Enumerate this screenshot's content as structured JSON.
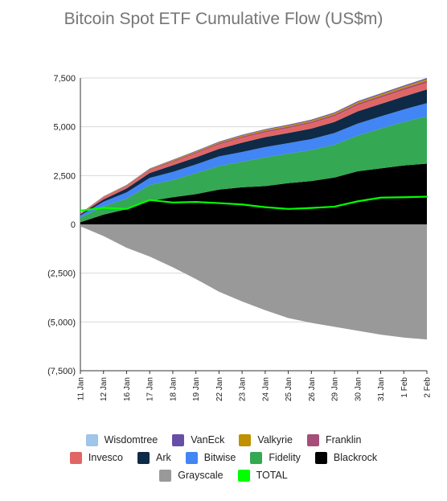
{
  "chart_data": {
    "type": "area",
    "title": "Bitcoin Spot ETF Cumulative Flow (US$m)",
    "xlabel": "",
    "ylabel": "",
    "ylim": [
      -7500,
      7500
    ],
    "y_ticks": [
      "7,500",
      "5,000",
      "2,500",
      "0",
      "(2,500)",
      "(5,000)",
      "(7,500)"
    ],
    "y_tick_values": [
      7500,
      5000,
      2500,
      0,
      -2500,
      -5000,
      -7500
    ],
    "grid": true,
    "legend_position": "bottom",
    "categories": [
      "11 Jan",
      "12 Jan",
      "16 Jan",
      "17 Jan",
      "18 Jan",
      "19 Jan",
      "22 Jan",
      "23 Jan",
      "24 Jan",
      "25 Jan",
      "26 Jan",
      "29 Jan",
      "30 Jan",
      "31 Jan",
      "1 Feb",
      "2 Feb"
    ],
    "stacked": true,
    "series": [
      {
        "name": "Blackrock",
        "color": "#000000",
        "values": [
          110,
          500,
          780,
          1200,
          1390,
          1550,
          1780,
          1900,
          1960,
          2110,
          2220,
          2400,
          2720,
          2870,
          3020,
          3110
        ]
      },
      {
        "name": "Fidelity",
        "color": "#34a853",
        "values": [
          230,
          420,
          540,
          820,
          880,
          1070,
          1210,
          1310,
          1470,
          1510,
          1590,
          1680,
          1830,
          2040,
          2230,
          2430
        ]
      },
      {
        "name": "Bitwise",
        "color": "#4285f4",
        "values": [
          120,
          240,
          320,
          360,
          420,
          450,
          490,
          500,
          530,
          540,
          560,
          600,
          610,
          620,
          640,
          670
        ]
      },
      {
        "name": "Ark",
        "color": "#0f2a47",
        "values": [
          60,
          120,
          200,
          250,
          340,
          360,
          390,
          480,
          510,
          520,
          540,
          570,
          630,
          640,
          660,
          710
        ]
      },
      {
        "name": "Invesco",
        "color": "#e06666",
        "values": [
          30,
          100,
          110,
          140,
          160,
          200,
          220,
          240,
          240,
          250,
          270,
          290,
          310,
          320,
          330,
          330
        ]
      },
      {
        "name": "Franklin",
        "color": "#a64d79",
        "values": [
          10,
          25,
          35,
          45,
          55,
          60,
          65,
          70,
          75,
          78,
          80,
          85,
          90,
          95,
          100,
          105
        ]
      },
      {
        "name": "Valkyrie",
        "color": "#bf9000",
        "values": [
          10,
          20,
          25,
          30,
          40,
          45,
          50,
          55,
          55,
          58,
          60,
          65,
          70,
          75,
          80,
          85
        ]
      },
      {
        "name": "VanEck",
        "color": "#674ea7",
        "values": [
          5,
          10,
          15,
          20,
          25,
          30,
          33,
          36,
          40,
          42,
          45,
          48,
          50,
          52,
          55,
          58
        ]
      },
      {
        "name": "Wisdomtree",
        "color": "#9fc5e8",
        "values": [
          2,
          3,
          4,
          5,
          6,
          6,
          7,
          7,
          8,
          8,
          9,
          9,
          10,
          10,
          11,
          11
        ]
      },
      {
        "name": "Grayscale",
        "color": "#999999",
        "stack": "negative",
        "values": [
          -100,
          -600,
          -1200,
          -1650,
          -2200,
          -2800,
          -3450,
          -3950,
          -4400,
          -4800,
          -5050,
          -5250,
          -5450,
          -5650,
          -5800,
          -5900
        ]
      }
    ],
    "total": {
      "name": "TOTAL",
      "color": "#00ff00",
      "values": [
        700,
        850,
        790,
        1250,
        1120,
        1150,
        1090,
        1020,
        880,
        790,
        840,
        910,
        1180,
        1370,
        1390,
        1420
      ]
    },
    "legend_rows": [
      [
        "Wisdomtree",
        "VanEck",
        "Valkyrie",
        "Franklin"
      ],
      [
        "Invesco",
        "Ark",
        "Bitwise",
        "Fidelity",
        "Blackrock"
      ],
      [
        "Grayscale",
        "TOTAL"
      ]
    ]
  }
}
